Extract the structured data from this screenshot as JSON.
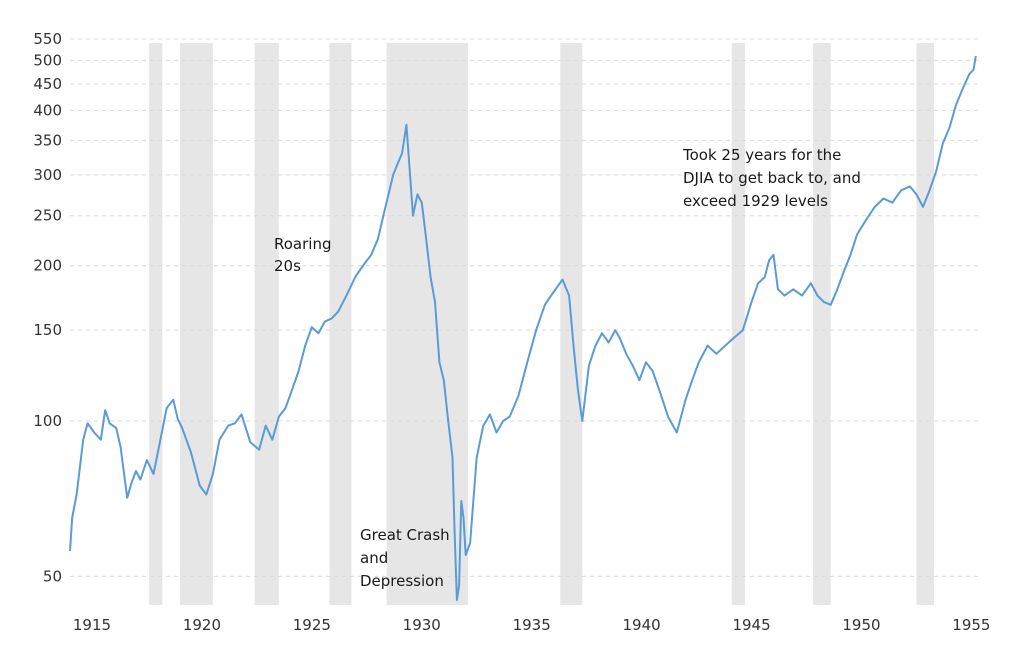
{
  "chart_data": {
    "type": "line",
    "title": "",
    "xlabel": "",
    "ylabel": "",
    "yscale": "log",
    "xlim": [
      1914.0,
      1955.3
    ],
    "ylim": [
      44,
      560
    ],
    "grid": "horizontal-dashed",
    "legend": "none",
    "line_color": "#5b9bd5",
    "band_color": "#e6e6e6",
    "x_ticks": [
      "1915",
      "1920",
      "1925",
      "1930",
      "1935",
      "1940",
      "1945",
      "1950",
      "1955"
    ],
    "x_tick_values": [
      1915,
      1920,
      1925,
      1930,
      1935,
      1940,
      1945,
      1950,
      1955
    ],
    "y_ticks": [
      "50",
      "100",
      "150",
      "200",
      "250",
      "300",
      "350",
      "400",
      "450",
      "500",
      "550"
    ],
    "y_tick_values": [
      50,
      100,
      150,
      200,
      250,
      300,
      350,
      400,
      450,
      500,
      550
    ],
    "recessions": [
      [
        1917.6,
        1918.2
      ],
      [
        1919.0,
        1920.5
      ],
      [
        1922.4,
        1923.5
      ],
      [
        1925.8,
        1926.8
      ],
      [
        1928.4,
        1932.1
      ],
      [
        1936.3,
        1937.3
      ],
      [
        1944.1,
        1944.7
      ],
      [
        1947.8,
        1948.6
      ],
      [
        1952.5,
        1953.3
      ]
    ],
    "series": [
      {
        "x": [
          1914.0,
          1914.1,
          1914.3,
          1914.6,
          1914.8,
          1915.1,
          1915.4,
          1915.6,
          1915.8,
          1916.1,
          1916.3,
          1916.6,
          1916.8,
          1917.0,
          1917.2,
          1917.5,
          1917.8,
          1918.0,
          1918.4,
          1918.7,
          1918.9,
          1919.1,
          1919.5,
          1919.9,
          1920.2,
          1920.5,
          1920.8,
          1921.2,
          1921.5,
          1921.8,
          1922.2,
          1922.6,
          1922.9,
          1923.2,
          1923.5,
          1923.8,
          1924.1,
          1924.4,
          1924.7,
          1925.0,
          1925.3,
          1925.6,
          1925.9,
          1926.2,
          1926.6,
          1927.0,
          1927.4,
          1927.7,
          1928.0,
          1928.3,
          1928.7,
          1928.9,
          1929.1,
          1929.3,
          1929.6,
          1929.8,
          1930.0,
          1930.2,
          1930.4,
          1930.6,
          1930.8,
          1931.0,
          1931.2,
          1931.4,
          1931.5,
          1931.6,
          1931.7,
          1931.8,
          1931.9,
          1932.0,
          1932.2,
          1932.5,
          1932.8,
          1933.1,
          1933.4,
          1933.7,
          1934.0,
          1934.4,
          1934.8,
          1935.2,
          1935.6,
          1936.0,
          1936.4,
          1936.7,
          1936.9,
          1937.1,
          1937.3,
          1937.6,
          1937.9,
          1938.2,
          1938.5,
          1938.8,
          1939.0,
          1939.3,
          1939.6,
          1939.9,
          1940.2,
          1940.5,
          1940.8,
          1941.2,
          1941.6,
          1942.0,
          1942.3,
          1942.6,
          1943.0,
          1943.4,
          1943.8,
          1944.2,
          1944.6,
          1945.0,
          1945.3,
          1945.6,
          1945.8,
          1946.0,
          1946.2,
          1946.5,
          1946.9,
          1947.3,
          1947.7,
          1948.0,
          1948.3,
          1948.6,
          1948.9,
          1949.2,
          1949.5,
          1949.8,
          1950.2,
          1950.6,
          1951.0,
          1951.4,
          1951.8,
          1952.2,
          1952.5,
          1952.8,
          1953.1,
          1953.4,
          1953.7,
          1954.0,
          1954.3,
          1954.6,
          1954.9,
          1955.1,
          1955.2
        ],
        "values": [
          56,
          65,
          72,
          92,
          99,
          95,
          92,
          105,
          99,
          97,
          89,
          71,
          76,
          80,
          77,
          84,
          79,
          87,
          106,
          110,
          101,
          97,
          87,
          75,
          72,
          79,
          92,
          98,
          99,
          103,
          91,
          88,
          98,
          92,
          102,
          106,
          115,
          125,
          140,
          152,
          148,
          156,
          158,
          163,
          176,
          191,
          202,
          210,
          225,
          255,
          300,
          315,
          330,
          375,
          250,
          275,
          265,
          225,
          190,
          170,
          130,
          120,
          100,
          85,
          60,
          45,
          48,
          70,
          65,
          55,
          58,
          85,
          98,
          103,
          95,
          100,
          102,
          112,
          130,
          150,
          168,
          178,
          188,
          175,
          140,
          115,
          100,
          128,
          140,
          148,
          142,
          150,
          145,
          135,
          128,
          120,
          130,
          125,
          115,
          102,
          95,
          110,
          120,
          130,
          140,
          135,
          140,
          145,
          150,
          170,
          185,
          190,
          205,
          210,
          180,
          175,
          180,
          175,
          185,
          175,
          170,
          168,
          180,
          195,
          210,
          230,
          245,
          260,
          270,
          265,
          280,
          285,
          275,
          260,
          280,
          305,
          345,
          370,
          410,
          440,
          470,
          480,
          510
        ]
      }
    ],
    "annotations": [
      {
        "lines": [
          "Roaring",
          "20s"
        ]
      },
      {
        "lines": [
          "Great Crash",
          "and",
          "Depression"
        ]
      },
      {
        "lines": [
          "Took 25 years for the",
          "DJIA to get back to, and",
          "exceed 1929 levels"
        ]
      }
    ]
  }
}
